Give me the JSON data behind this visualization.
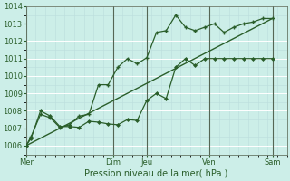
{
  "title": "",
  "xlabel": "Pression niveau de la mer( hPa )",
  "bg_color": "#cceee8",
  "grid_major_color": "#aacccc",
  "grid_minor_color": "#ccdddd",
  "line_color": "#2a5e2a",
  "ylim": [
    1005.5,
    1014.0
  ],
  "yticks": [
    1006,
    1007,
    1008,
    1009,
    1010,
    1011,
    1012,
    1013,
    1014
  ],
  "x_day_labels": [
    "Mer",
    "Dim",
    "Jeu",
    "Ven",
    "Sam"
  ],
  "x_day_positions": [
    0,
    9,
    12.5,
    19,
    25.5
  ],
  "xlim": [
    0,
    27
  ],
  "vline_positions": [
    0,
    9,
    12.5,
    19,
    25.5
  ],
  "series1_x": [
    0,
    0.5,
    1.5,
    2.5,
    3.5,
    4.5,
    5.5,
    6.5,
    7.5,
    8.5,
    9.5,
    10.5,
    11.5,
    12.5,
    13.5,
    14.5,
    15.5,
    16.5,
    17.5,
    18.5,
    19.5,
    20.5,
    21.5,
    22.5,
    23.5,
    24.5,
    25.5
  ],
  "series1_y": [
    1006.0,
    1006.4,
    1008.0,
    1007.7,
    1007.1,
    1007.1,
    1007.05,
    1007.4,
    1007.35,
    1007.25,
    1007.2,
    1007.5,
    1007.45,
    1008.6,
    1009.0,
    1008.7,
    1010.5,
    1011.0,
    1010.6,
    1011.0,
    1011.0,
    1011.0,
    1011.0,
    1011.0,
    1011.0,
    1011.0,
    1011.0
  ],
  "series2_x": [
    0,
    0.5,
    1.5,
    2.5,
    3.5,
    4.5,
    5.5,
    6.5,
    7.5,
    8.5,
    9.5,
    10.5,
    11.5,
    12.5,
    13.5,
    14.5,
    15.5,
    16.5,
    17.5,
    18.5,
    19.5,
    20.5,
    21.5,
    22.5,
    23.5,
    24.5,
    25.5
  ],
  "series2_y": [
    1006.0,
    1006.5,
    1007.8,
    1007.6,
    1007.05,
    1007.2,
    1007.7,
    1007.8,
    1009.5,
    1009.5,
    1010.5,
    1011.0,
    1010.7,
    1011.05,
    1012.5,
    1012.6,
    1013.5,
    1012.8,
    1012.6,
    1012.8,
    1013.0,
    1012.5,
    1012.8,
    1013.0,
    1013.1,
    1013.3,
    1013.3
  ],
  "trend_x": [
    0,
    25.5
  ],
  "trend_y": [
    1006.0,
    1013.3
  ]
}
